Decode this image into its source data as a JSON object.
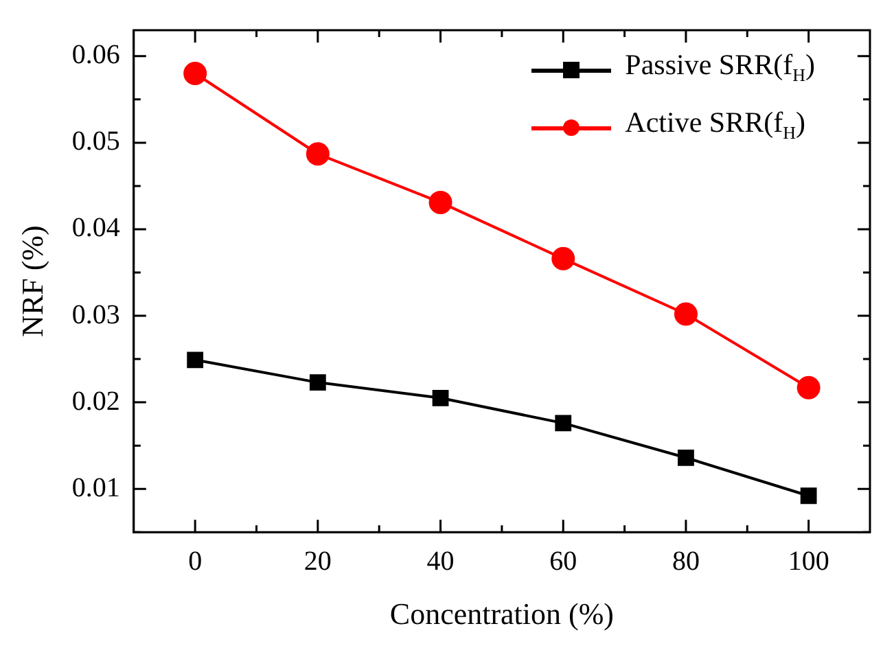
{
  "chart_data": {
    "type": "line",
    "xlabel": "Concentration (%)",
    "ylabel": "NRF (%)",
    "x": [
      0,
      20,
      40,
      60,
      80,
      100
    ],
    "xlim": [
      -10,
      110
    ],
    "xticks": [
      0,
      {
        "value": 10,
        "label": null
      },
      20,
      {
        "value": 30,
        "label": null
      },
      40,
      {
        "value": 50,
        "label": null
      },
      60,
      {
        "value": 70,
        "label": null
      },
      80,
      {
        "value": 90,
        "label": null
      },
      100
    ],
    "ylim": [
      0.005,
      0.063
    ],
    "yticks": [
      {
        "value": 0.005,
        "label": null
      },
      0.01,
      {
        "value": 0.015,
        "label": null
      },
      0.02,
      {
        "value": 0.025,
        "label": null
      },
      0.03,
      {
        "value": 0.035,
        "label": null
      },
      0.04,
      {
        "value": 0.045,
        "label": null
      },
      0.05,
      {
        "value": 0.055,
        "label": null
      },
      0.06
    ],
    "series": [
      {
        "name": "Passive SRR(f$_{H}$)",
        "color": "#000000",
        "marker": "square",
        "values": [
          0.0249,
          0.0223,
          0.0205,
          0.0176,
          0.0136,
          0.0092
        ]
      },
      {
        "name": "Active SRR(f$_{H}$)",
        "color": "#ff0000",
        "marker": "circle",
        "values": [
          0.058,
          0.0487,
          0.0431,
          0.0366,
          0.0302,
          0.0217
        ]
      }
    ],
    "legend": "top right",
    "grid": false,
    "line_style": "solid"
  }
}
